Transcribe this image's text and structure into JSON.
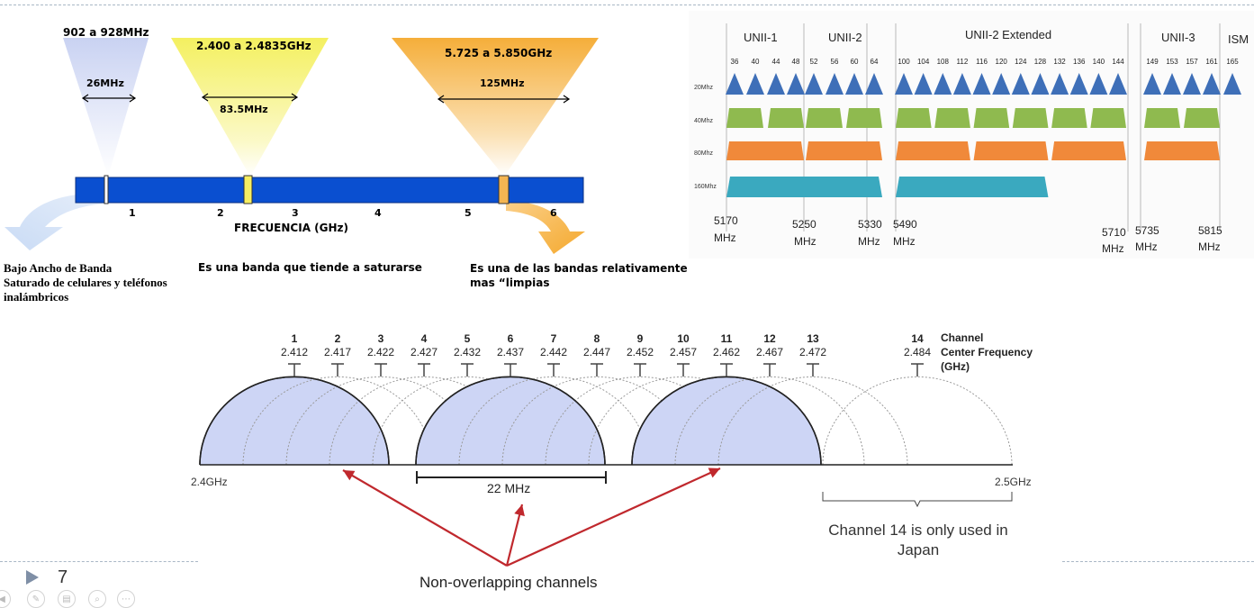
{
  "bands_diagram": {
    "band_900": {
      "range": "902 a 928MHz",
      "width": "26MHz"
    },
    "band_24": {
      "range": "2.400 a 2.4835GHz",
      "width": "83.5MHz"
    },
    "band_58": {
      "range": "5.725 a 5.850GHz",
      "width": "125MHz"
    },
    "axis_ticks": [
      "1",
      "2",
      "3",
      "4",
      "5",
      "6"
    ],
    "axis_label": "FRECUENCIA (GHz)",
    "note_900": [
      "Bajo Ancho de Banda",
      "Saturado de celulares y teléfonos",
      "inalámbricos"
    ],
    "note_24": "Es una banda que tiende a saturarse",
    "note_58": [
      "Es una de las bandas relativamente",
      "mas “limpias"
    ],
    "colors": {
      "bar": "#0a4fd0",
      "cone_900": "#c9d2f2",
      "cone_24": "#f4f060",
      "cone_58": "#f5ae3a",
      "arrow_900": "#cfe0f7",
      "arrow_58": "#f5b340"
    }
  },
  "unii_chart": {
    "groups": [
      "UNII-1",
      "UNII-2",
      "UNII-2 Extended",
      "UNII-3",
      "ISM"
    ],
    "channels": [
      "36",
      "40",
      "44",
      "48",
      "52",
      "56",
      "60",
      "64",
      "100",
      "104",
      "108",
      "112",
      "116",
      "120",
      "124",
      "128",
      "132",
      "136",
      "140",
      "144",
      "149",
      "153",
      "157",
      "161",
      "165"
    ],
    "rows": [
      "20Mhz",
      "40Mhz",
      "80Mhz",
      "160Mhz"
    ],
    "freq_labels": [
      {
        "top": "5170",
        "bottom": "MHz"
      },
      {
        "top": "5250",
        "bottom": "MHz"
      },
      {
        "top": "5330",
        "bottom": "MHz"
      },
      {
        "top": "5490",
        "bottom": "MHz"
      },
      {
        "top": "5710",
        "bottom": "MHz"
      },
      {
        "top": "5735",
        "bottom": "MHz"
      },
      {
        "top": "5815",
        "bottom": "MHz"
      }
    ],
    "colors": {
      "20": "#3e6fb8",
      "40": "#8fba4f",
      "80": "#f0893a",
      "160": "#3aa9bf"
    }
  },
  "channel_diagram": {
    "channels": [
      {
        "num": "1",
        "freq": "2.412"
      },
      {
        "num": "2",
        "freq": "2.417"
      },
      {
        "num": "3",
        "freq": "2.422"
      },
      {
        "num": "4",
        "freq": "2.427"
      },
      {
        "num": "5",
        "freq": "2.432"
      },
      {
        "num": "6",
        "freq": "2.437"
      },
      {
        "num": "7",
        "freq": "2.442"
      },
      {
        "num": "8",
        "freq": "2.447"
      },
      {
        "num": "9",
        "freq": "2.452"
      },
      {
        "num": "10",
        "freq": "2.457"
      },
      {
        "num": "11",
        "freq": "2.462"
      },
      {
        "num": "12",
        "freq": "2.467"
      },
      {
        "num": "13",
        "freq": "2.472"
      },
      {
        "num": "14",
        "freq": "2.484"
      }
    ],
    "legend": [
      "Channel",
      "Center Frequency",
      "(GHz)"
    ],
    "start_label": "2.4GHz",
    "end_label": "2.5GHz",
    "width_label": "22 MHz",
    "japan_note": [
      "Channel 14 is only used in",
      "Japan"
    ],
    "non_overlap_label": "Non-overlapping channels",
    "colors": {
      "fill": "#cdd5f5",
      "arrow": "#c0282d"
    }
  },
  "footer": {
    "slide_number": "7"
  }
}
